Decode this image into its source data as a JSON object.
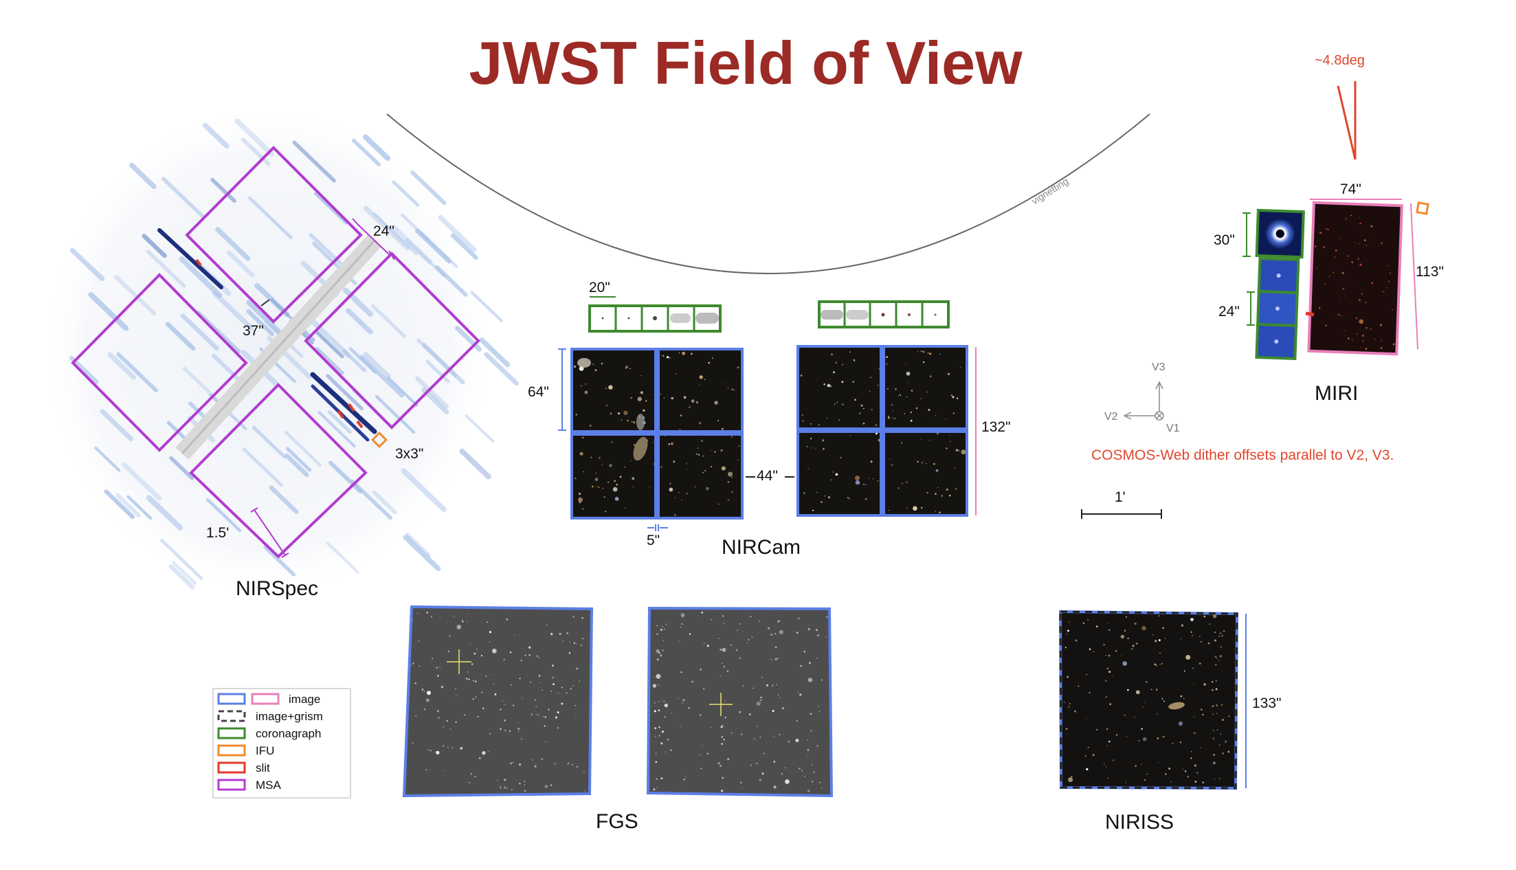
{
  "title": "JWST Field of View",
  "labels": {
    "vignetting": "vignetting",
    "angle": "~4.8deg",
    "miri_width": "74\"",
    "miri_height": "113\"",
    "miri_coro_top": "30\"",
    "miri_coro_lower": "24\"",
    "miri": "MIRI",
    "nirspec_slit_len": "24\"",
    "nirspec_gap": "37\"",
    "nirspec_ifu": "3x3\"",
    "nirspec_msa": "1.5'",
    "nirspec": "NIRSpec",
    "nircam_coro": "20\"",
    "nircam_height": "64\"",
    "nircam_gap": "44\"",
    "nircam_chip_gap": "5\"",
    "nircam_lw": "132\"",
    "nircam": "NIRCam",
    "v3": "V3",
    "v2": "V2",
    "v1": "V1",
    "dither_note": "COSMOS-Web dither offsets parallel to V2, V3.",
    "scale_bar": "1'",
    "fgs": "FGS",
    "niriss_height": "133\"",
    "niriss": "NIRISS"
  },
  "legend": [
    {
      "label": "image",
      "colors": [
        "#5b7fe6",
        "#e97fb8"
      ],
      "style": "solid"
    },
    {
      "label": "image+grism",
      "colors": [
        "#444444"
      ],
      "style": "dashed"
    },
    {
      "label": "coronagraph",
      "colors": [
        "#3d8a2e"
      ],
      "style": "solid"
    },
    {
      "label": "IFU",
      "colors": [
        "#f08a2c"
      ],
      "style": "solid"
    },
    {
      "label": "slit",
      "colors": [
        "#e23a2a"
      ],
      "style": "solid"
    },
    {
      "label": "MSA",
      "colors": [
        "#b23ccf"
      ],
      "style": "solid"
    }
  ],
  "colors": {
    "title": "#9c2a25",
    "accent_red": "#e0452d",
    "image_blue": "#5b7fe6",
    "image_pink": "#e97fb8",
    "coronagraph_green": "#3d8a2e",
    "ifu_orange": "#f08a2c",
    "msa_purple": "#b23ccf"
  }
}
